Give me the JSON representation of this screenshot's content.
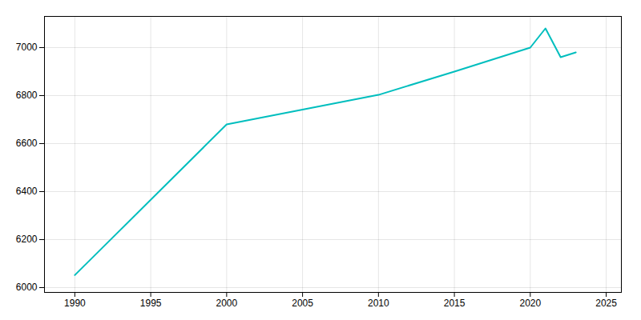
{
  "chart_data": {
    "type": "line",
    "x": [
      1990,
      2000,
      2010,
      2015,
      2020,
      2021,
      2022,
      2023
    ],
    "values": [
      6052,
      6680,
      6803,
      6900,
      7000,
      7080,
      6960,
      6980
    ],
    "color": "#00BEBE",
    "xlim": [
      1988,
      2026
    ],
    "ylim": [
      5980,
      7130
    ],
    "xticks": [
      1990,
      1995,
      2000,
      2005,
      2010,
      2015,
      2020,
      2025
    ],
    "yticks": [
      6000,
      6200,
      6400,
      6600,
      6800,
      7000
    ],
    "grid": true
  }
}
